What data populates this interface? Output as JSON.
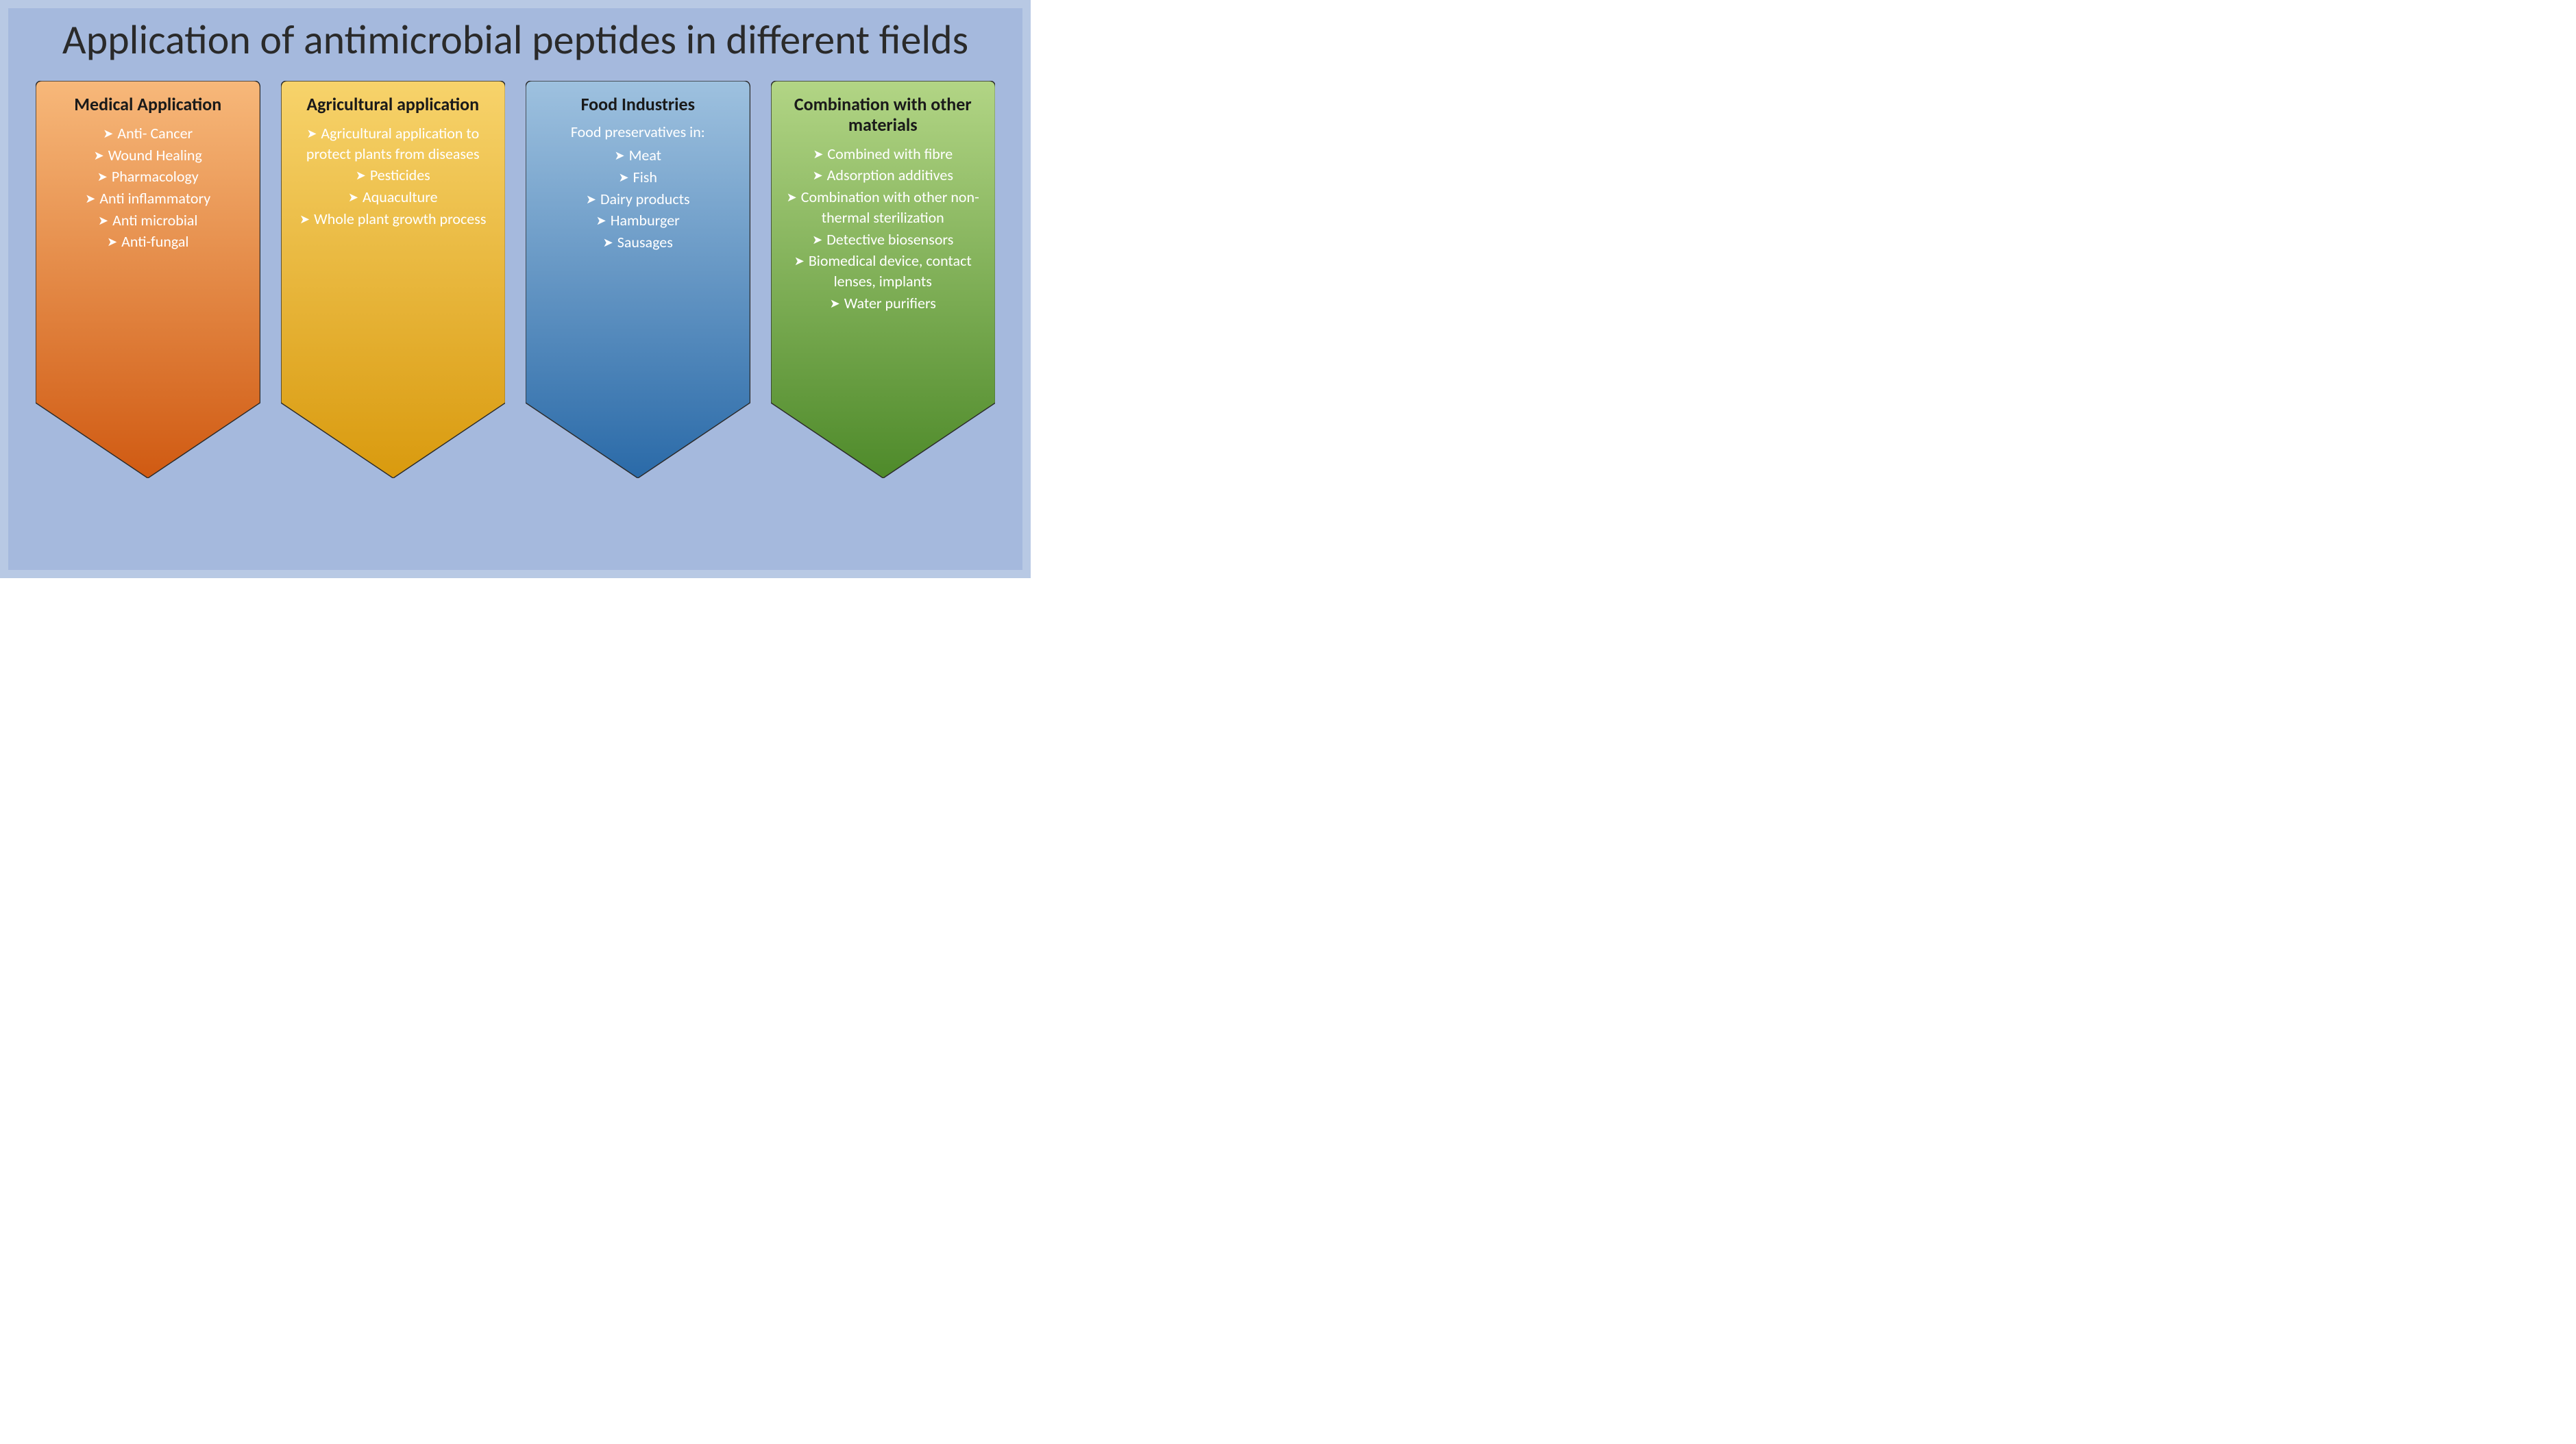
{
  "title": "Application of antimicrobial peptides in different fields",
  "background_outer": "#b8c9e4",
  "background_inner": "#a5b9dd",
  "title_color": "#2a2a2a",
  "title_fontsize": 60,
  "card_border_color": "#2b2b2b",
  "card_text_color": "#ffffff",
  "card_title_color": "#1a1a1a",
  "bullet_glyph": "➤",
  "cards": [
    {
      "title": "Medical Application",
      "gradient_top": "#f7b87a",
      "gradient_bottom": "#d05a12",
      "intro": "",
      "items": [
        "Anti- Cancer",
        "Wound Healing",
        "Pharmacology",
        "Anti inflammatory",
        "Anti microbial",
        "Anti-fungal"
      ]
    },
    {
      "title": "Agricultural application",
      "gradient_top": "#f7d36b",
      "gradient_bottom": "#d99a0e",
      "intro": "",
      "items": [
        "Agricultural application to protect plants from diseases",
        "Pesticides",
        "Aquaculture",
        "Whole plant growth process"
      ]
    },
    {
      "title": "Food Industries",
      "gradient_top": "#9ec1df",
      "gradient_bottom": "#2a6aa8",
      "intro": "Food preservatives in:",
      "items": [
        "Meat",
        "Fish",
        "Dairy products",
        "Hamburger",
        "Sausages"
      ]
    },
    {
      "title": "Combination with other materials",
      "gradient_top": "#b2d585",
      "gradient_bottom": "#4e8a2a",
      "intro": "",
      "items": [
        "Combined with fibre",
        "Adsorption additives",
        "Combination with other non-thermal sterilization",
        "Detective biosensors",
        "Biomedical device, contact lenses, implants",
        "Water purifiers"
      ]
    }
  ]
}
